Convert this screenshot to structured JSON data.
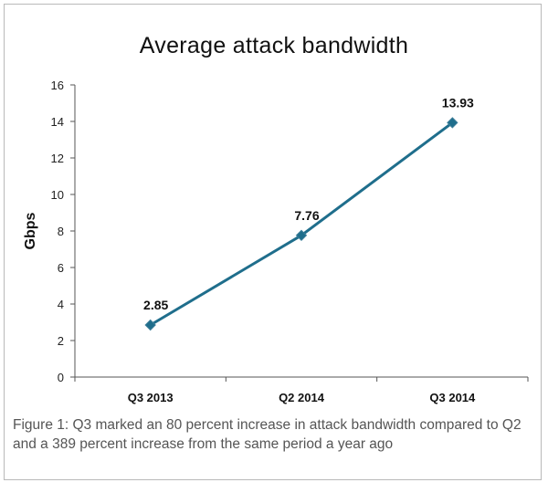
{
  "chart_data": {
    "type": "line",
    "title": "Average attack bandwidth",
    "xlabel": "",
    "ylabel": "Gbps",
    "categories": [
      "Q3 2013",
      "Q2 2014",
      "Q3 2014"
    ],
    "series": [
      {
        "values": [
          2.85,
          7.76,
          13.93
        ],
        "data_labels": [
          "2.85",
          "7.76",
          "13.93"
        ],
        "color": "#1f6e8c"
      }
    ],
    "ylim": [
      0,
      16
    ],
    "yticks": [
      0,
      2,
      4,
      6,
      8,
      10,
      12,
      14,
      16
    ],
    "grid": false,
    "legend": "none"
  },
  "caption": "Figure 1: Q3 marked an 80 percent increase in attack bandwidth compared to Q2 and a 389 percent increase from the same period a year ago"
}
